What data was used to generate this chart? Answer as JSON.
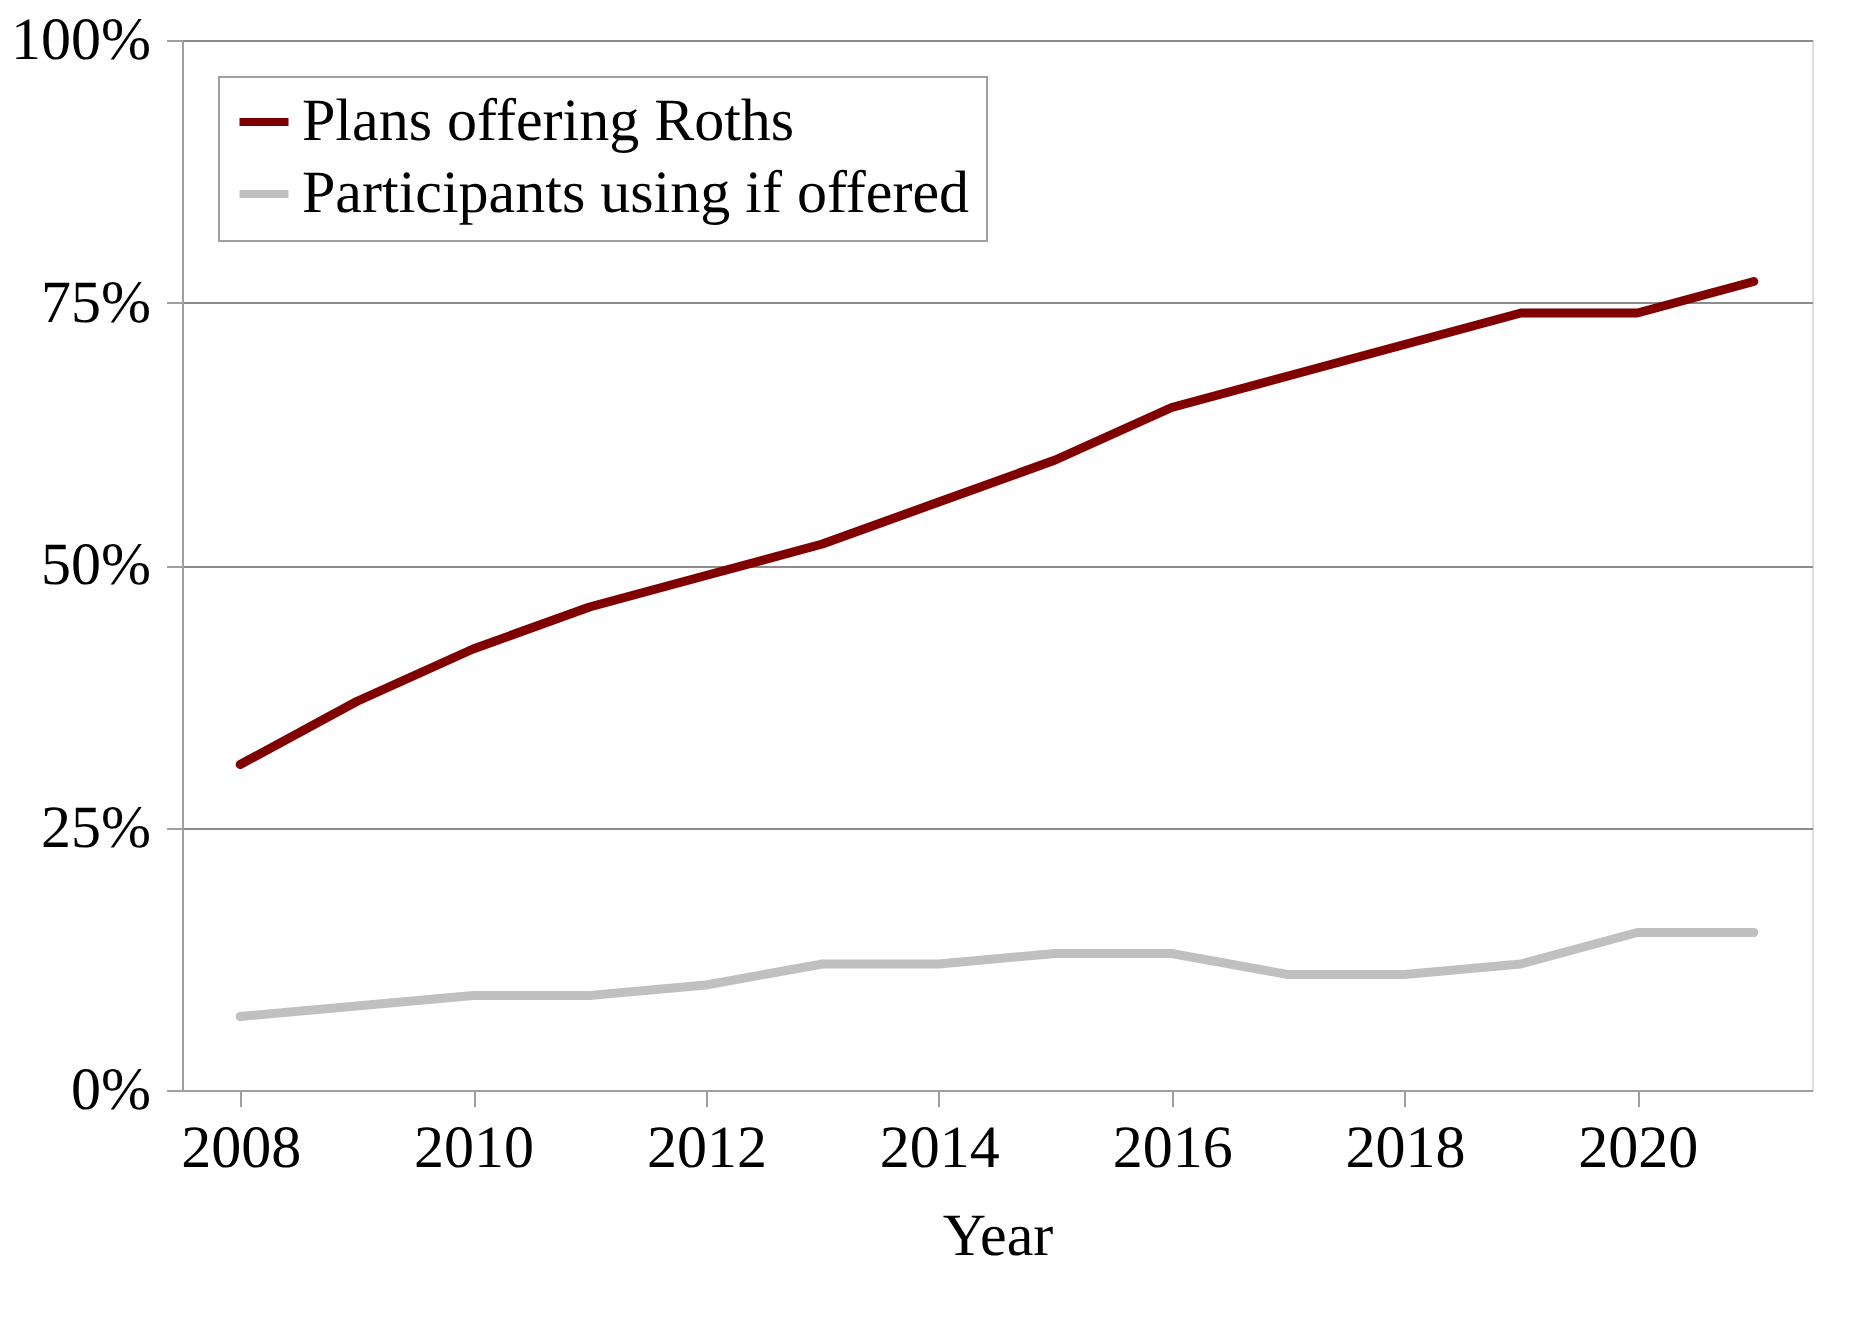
{
  "chart_data": {
    "type": "line",
    "xlabel": "Year",
    "x": [
      2008,
      2009,
      2010,
      2011,
      2012,
      2013,
      2014,
      2015,
      2016,
      2017,
      2018,
      2019,
      2020,
      2021
    ],
    "series": [
      {
        "name": "Plans offering Roths",
        "color": "#800000",
        "values": [
          31,
          37,
          42,
          46,
          49,
          52,
          56,
          60,
          65,
          68,
          71,
          74,
          74,
          77
        ]
      },
      {
        "name": "Participants using if offered",
        "color": "#c0c0c0",
        "values": [
          7,
          8,
          9,
          9,
          10,
          12,
          12,
          13,
          13,
          11,
          11,
          12,
          15,
          15
        ]
      }
    ],
    "xlim": [
      2007.5,
      2021.5
    ],
    "xticks": [
      2008,
      2010,
      2012,
      2014,
      2016,
      2018,
      2020
    ],
    "ylim": [
      0,
      100
    ],
    "yticks": [
      {
        "value": 0,
        "label": "0%"
      },
      {
        "value": 25,
        "label": "25%"
      },
      {
        "value": 50,
        "label": "50%"
      },
      {
        "value": 75,
        "label": "75%"
      },
      {
        "value": 100,
        "label": "100%"
      }
    ],
    "grid": "y",
    "legend": "top left",
    "marker": "none",
    "line_style": "solid"
  }
}
